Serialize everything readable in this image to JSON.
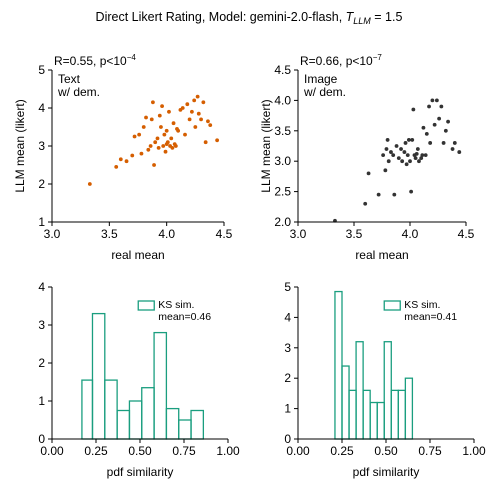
{
  "figure": {
    "title_main": "Direct Likert Rating, Model: gemini-2.0-flash, ",
    "title_T": "T",
    "title_sub": "LLM",
    "title_value": " = 1.5"
  },
  "colors": {
    "orange": "#d55e00",
    "dark": "#333333",
    "teal": "#1a9e7f"
  },
  "chart_data": [
    {
      "type": "scatter",
      "panel": "top-left",
      "stat_prefix": "R=0.55, p<10",
      "stat_exp": "−4",
      "annotation_lines": [
        "Text",
        "w/ dem."
      ],
      "xlabel": "real mean",
      "ylabel": "LLM mean (likert)",
      "xlim": [
        3.0,
        4.5
      ],
      "ylim": [
        1,
        5
      ],
      "xticks": [
        "3.0",
        "3.5",
        "4.0",
        "4.5"
      ],
      "yticks": [
        "1",
        "2",
        "3",
        "4",
        "5"
      ],
      "color": "#d55e00",
      "points": [
        [
          3.33,
          2.0
        ],
        [
          3.56,
          2.45
        ],
        [
          3.6,
          2.65
        ],
        [
          3.65,
          2.6
        ],
        [
          3.7,
          2.75
        ],
        [
          3.72,
          3.25
        ],
        [
          3.76,
          3.3
        ],
        [
          3.78,
          2.8
        ],
        [
          3.8,
          3.5
        ],
        [
          3.82,
          3.75
        ],
        [
          3.84,
          2.9
        ],
        [
          3.86,
          3.0
        ],
        [
          3.87,
          3.7
        ],
        [
          3.88,
          4.15
        ],
        [
          3.89,
          2.5
        ],
        [
          3.9,
          3.1
        ],
        [
          3.92,
          3.2
        ],
        [
          3.93,
          2.95
        ],
        [
          3.95,
          3.5
        ],
        [
          3.96,
          4.05
        ],
        [
          3.97,
          3.0
        ],
        [
          3.98,
          3.3
        ],
        [
          3.99,
          2.85
        ],
        [
          4.0,
          3.4
        ],
        [
          4.01,
          3.1
        ],
        [
          4.02,
          3.9
        ],
        [
          4.03,
          3.0
        ],
        [
          4.04,
          3.2
        ],
        [
          4.05,
          2.95
        ],
        [
          4.06,
          3.6
        ],
        [
          4.07,
          3.05
        ],
        [
          4.08,
          3.0
        ],
        [
          4.1,
          3.4
        ],
        [
          4.12,
          3.95
        ],
        [
          4.14,
          4.0
        ],
        [
          4.16,
          3.3
        ],
        [
          4.18,
          4.1
        ],
        [
          4.2,
          3.7
        ],
        [
          4.22,
          3.9
        ],
        [
          4.24,
          4.2
        ],
        [
          4.25,
          3.5
        ],
        [
          4.27,
          4.3
        ],
        [
          4.28,
          3.85
        ],
        [
          4.3,
          3.7
        ],
        [
          4.32,
          4.15
        ],
        [
          4.34,
          3.1
        ],
        [
          4.36,
          3.65
        ],
        [
          4.38,
          3.55
        ],
        [
          4.44,
          3.15
        ],
        [
          3.94,
          3.8
        ],
        [
          4.0,
          3.05
        ],
        [
          4.09,
          3.45
        ]
      ]
    },
    {
      "type": "scatter",
      "panel": "top-right",
      "stat_prefix": "R=0.66, p<10",
      "stat_exp": "−7",
      "annotation_lines": [
        "Image",
        "w/ dem."
      ],
      "xlabel": "real mean",
      "ylabel": "LLM mean (likert)",
      "xlim": [
        3.0,
        4.5
      ],
      "ylim": [
        2.0,
        4.5
      ],
      "xticks": [
        "3.0",
        "3.5",
        "4.0",
        "4.5"
      ],
      "yticks": [
        "2.0",
        "2.5",
        "3.0",
        "3.5",
        "4.0",
        "4.5"
      ],
      "color": "#333333",
      "points": [
        [
          3.33,
          2.02
        ],
        [
          3.6,
          2.3
        ],
        [
          3.63,
          2.8
        ],
        [
          3.72,
          2.45
        ],
        [
          3.76,
          3.1
        ],
        [
          3.78,
          2.85
        ],
        [
          3.8,
          3.35
        ],
        [
          3.81,
          3.0
        ],
        [
          3.83,
          3.15
        ],
        [
          3.85,
          3.1
        ],
        [
          3.86,
          2.45
        ],
        [
          3.88,
          3.25
        ],
        [
          3.9,
          3.05
        ],
        [
          3.92,
          3.2
        ],
        [
          3.93,
          3.0
        ],
        [
          3.95,
          3.15
        ],
        [
          3.96,
          3.3
        ],
        [
          3.97,
          2.95
        ],
        [
          3.98,
          3.1
        ],
        [
          4.0,
          3.0
        ],
        [
          4.02,
          3.35
        ],
        [
          4.03,
          3.85
        ],
        [
          4.04,
          3.1
        ],
        [
          4.05,
          3.05
        ],
        [
          4.07,
          3.2
        ],
        [
          4.08,
          3.0
        ],
        [
          4.1,
          3.05
        ],
        [
          4.12,
          3.55
        ],
        [
          4.14,
          3.1
        ],
        [
          4.15,
          3.45
        ],
        [
          4.17,
          3.9
        ],
        [
          4.18,
          3.3
        ],
        [
          4.2,
          4.0
        ],
        [
          4.22,
          3.6
        ],
        [
          4.24,
          4.0
        ],
        [
          4.26,
          3.7
        ],
        [
          4.28,
          3.9
        ],
        [
          4.3,
          3.3
        ],
        [
          4.32,
          3.5
        ],
        [
          4.34,
          3.65
        ],
        [
          4.38,
          3.2
        ],
        [
          4.4,
          3.3
        ],
        [
          4.44,
          3.15
        ],
        [
          3.99,
          3.35
        ],
        [
          4.01,
          2.5
        ],
        [
          4.11,
          3.1
        ],
        [
          3.79,
          3.2
        ],
        [
          4.06,
          3.12
        ]
      ]
    },
    {
      "type": "histogram",
      "panel": "bottom-left",
      "legend_label": "KS sim.",
      "legend_mean": "mean=0.46",
      "legend_position": "upper-right",
      "xlabel": "pdf similarity",
      "xlim": [
        0.0,
        1.0
      ],
      "ylim": [
        0,
        4
      ],
      "xticks": [
        "0.00",
        "0.25",
        "0.50",
        "0.75",
        "1.00"
      ],
      "yticks": [
        "0",
        "1",
        "2",
        "3",
        "4"
      ],
      "color": "#1a9e7f",
      "bin_edges": [
        0.17,
        0.23,
        0.3,
        0.37,
        0.44,
        0.51,
        0.58,
        0.65,
        0.72,
        0.79,
        0.86
      ],
      "counts": [
        1.55,
        3.3,
        1.55,
        0.75,
        1.0,
        1.35,
        2.8,
        0.8,
        0.5,
        0.75
      ]
    },
    {
      "type": "histogram",
      "panel": "bottom-right",
      "legend_label": "KS sim.",
      "legend_mean": "mean=0.41",
      "legend_position": "upper-right",
      "xlabel": "pdf similarity",
      "xlim": [
        0.0,
        1.0
      ],
      "ylim": [
        0,
        5
      ],
      "xticks": [
        "0.00",
        "0.25",
        "0.50",
        "0.75",
        "1.00"
      ],
      "yticks": [
        "0",
        "1",
        "2",
        "3",
        "4",
        "5"
      ],
      "color": "#1a9e7f",
      "bin_edges": [
        0.21,
        0.25,
        0.29,
        0.33,
        0.37,
        0.41,
        0.45,
        0.49,
        0.53,
        0.57,
        0.61,
        0.65
      ],
      "counts": [
        4.85,
        2.4,
        1.6,
        3.2,
        1.6,
        1.2,
        1.2,
        3.2,
        1.6,
        1.6,
        2.0
      ]
    }
  ]
}
